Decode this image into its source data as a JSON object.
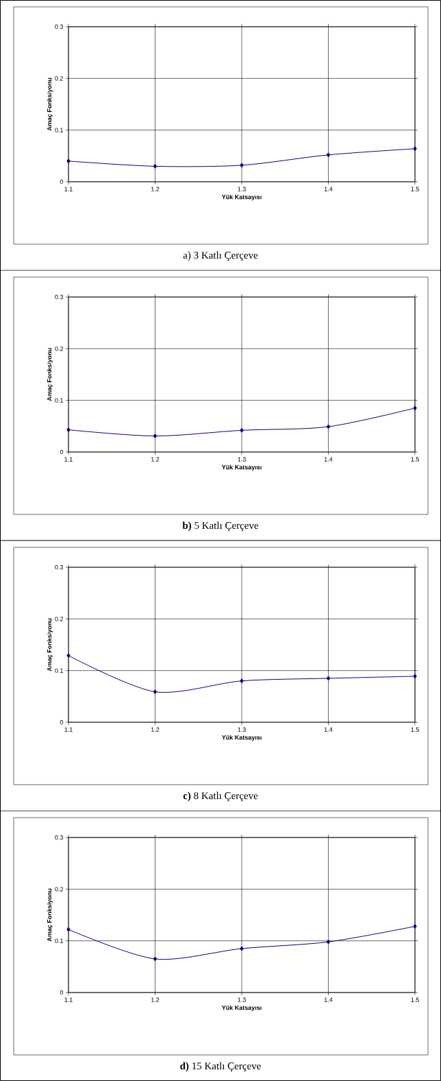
{
  "chart_data": [
    {
      "type": "line",
      "title": "a) 3 Katlı Çerçeve",
      "xlabel": "Yük Katsayısı",
      "ylabel": "Amaç Fonksiyonu",
      "x": [
        1.1,
        1.2,
        1.3,
        1.4,
        1.5
      ],
      "values": [
        0.04,
        0.03,
        0.032,
        0.052,
        0.064
      ],
      "color": "#000080",
      "xlim": [
        1.1,
        1.5
      ],
      "ylim": [
        0,
        0.3
      ],
      "xticks": [
        1.1,
        1.2,
        1.3,
        1.4,
        1.5
      ],
      "yticks": [
        0,
        0.1,
        0.2,
        0.3
      ],
      "grid": true,
      "marker": "diamond",
      "line_style": "solid"
    },
    {
      "type": "line",
      "title": "**b)** 5 Katlı Çerçeve",
      "xlabel": "Yük Katsayısı",
      "ylabel": "Amaç Fonksiyonu",
      "x": [
        1.1,
        1.2,
        1.3,
        1.4,
        1.5
      ],
      "values": [
        0.043,
        0.031,
        0.042,
        0.049,
        0.085
      ],
      "color": "#000080",
      "xlim": [
        1.1,
        1.5
      ],
      "ylim": [
        0,
        0.3
      ],
      "xticks": [
        1.1,
        1.2,
        1.3,
        1.4,
        1.5
      ],
      "yticks": [
        0,
        0.1,
        0.2,
        0.3
      ],
      "grid": true,
      "marker": "diamond",
      "line_style": "solid"
    },
    {
      "type": "line",
      "title": "**c)** 8 Katlı Çerçeve",
      "xlabel": "Yük Katsayısı",
      "ylabel": "Amaç Fonksiyonu",
      "x": [
        1.1,
        1.2,
        1.3,
        1.4,
        1.5
      ],
      "values": [
        0.129,
        0.059,
        0.08,
        0.085,
        0.089
      ],
      "color": "#000080",
      "xlim": [
        1.1,
        1.5
      ],
      "ylim": [
        0,
        0.3
      ],
      "xticks": [
        1.1,
        1.2,
        1.3,
        1.4,
        1.5
      ],
      "yticks": [
        0,
        0.1,
        0.2,
        0.3
      ],
      "grid": true,
      "marker": "diamond",
      "line_style": "solid"
    },
    {
      "type": "line",
      "title": "**d)** 15 Katlı Çerçeve",
      "xlabel": "Yük Katsayısı",
      "ylabel": "Amaç Fonksiyonu",
      "x": [
        1.1,
        1.2,
        1.3,
        1.4,
        1.5
      ],
      "values": [
        0.122,
        0.065,
        0.085,
        0.098,
        0.128
      ],
      "color": "#000080",
      "xlim": [
        1.1,
        1.5
      ],
      "ylim": [
        0,
        0.3
      ],
      "xticks": [
        1.1,
        1.2,
        1.3,
        1.4,
        1.5
      ],
      "yticks": [
        0,
        0.1,
        0.2,
        0.3
      ],
      "grid": true,
      "marker": "diamond",
      "line_style": "solid"
    }
  ]
}
